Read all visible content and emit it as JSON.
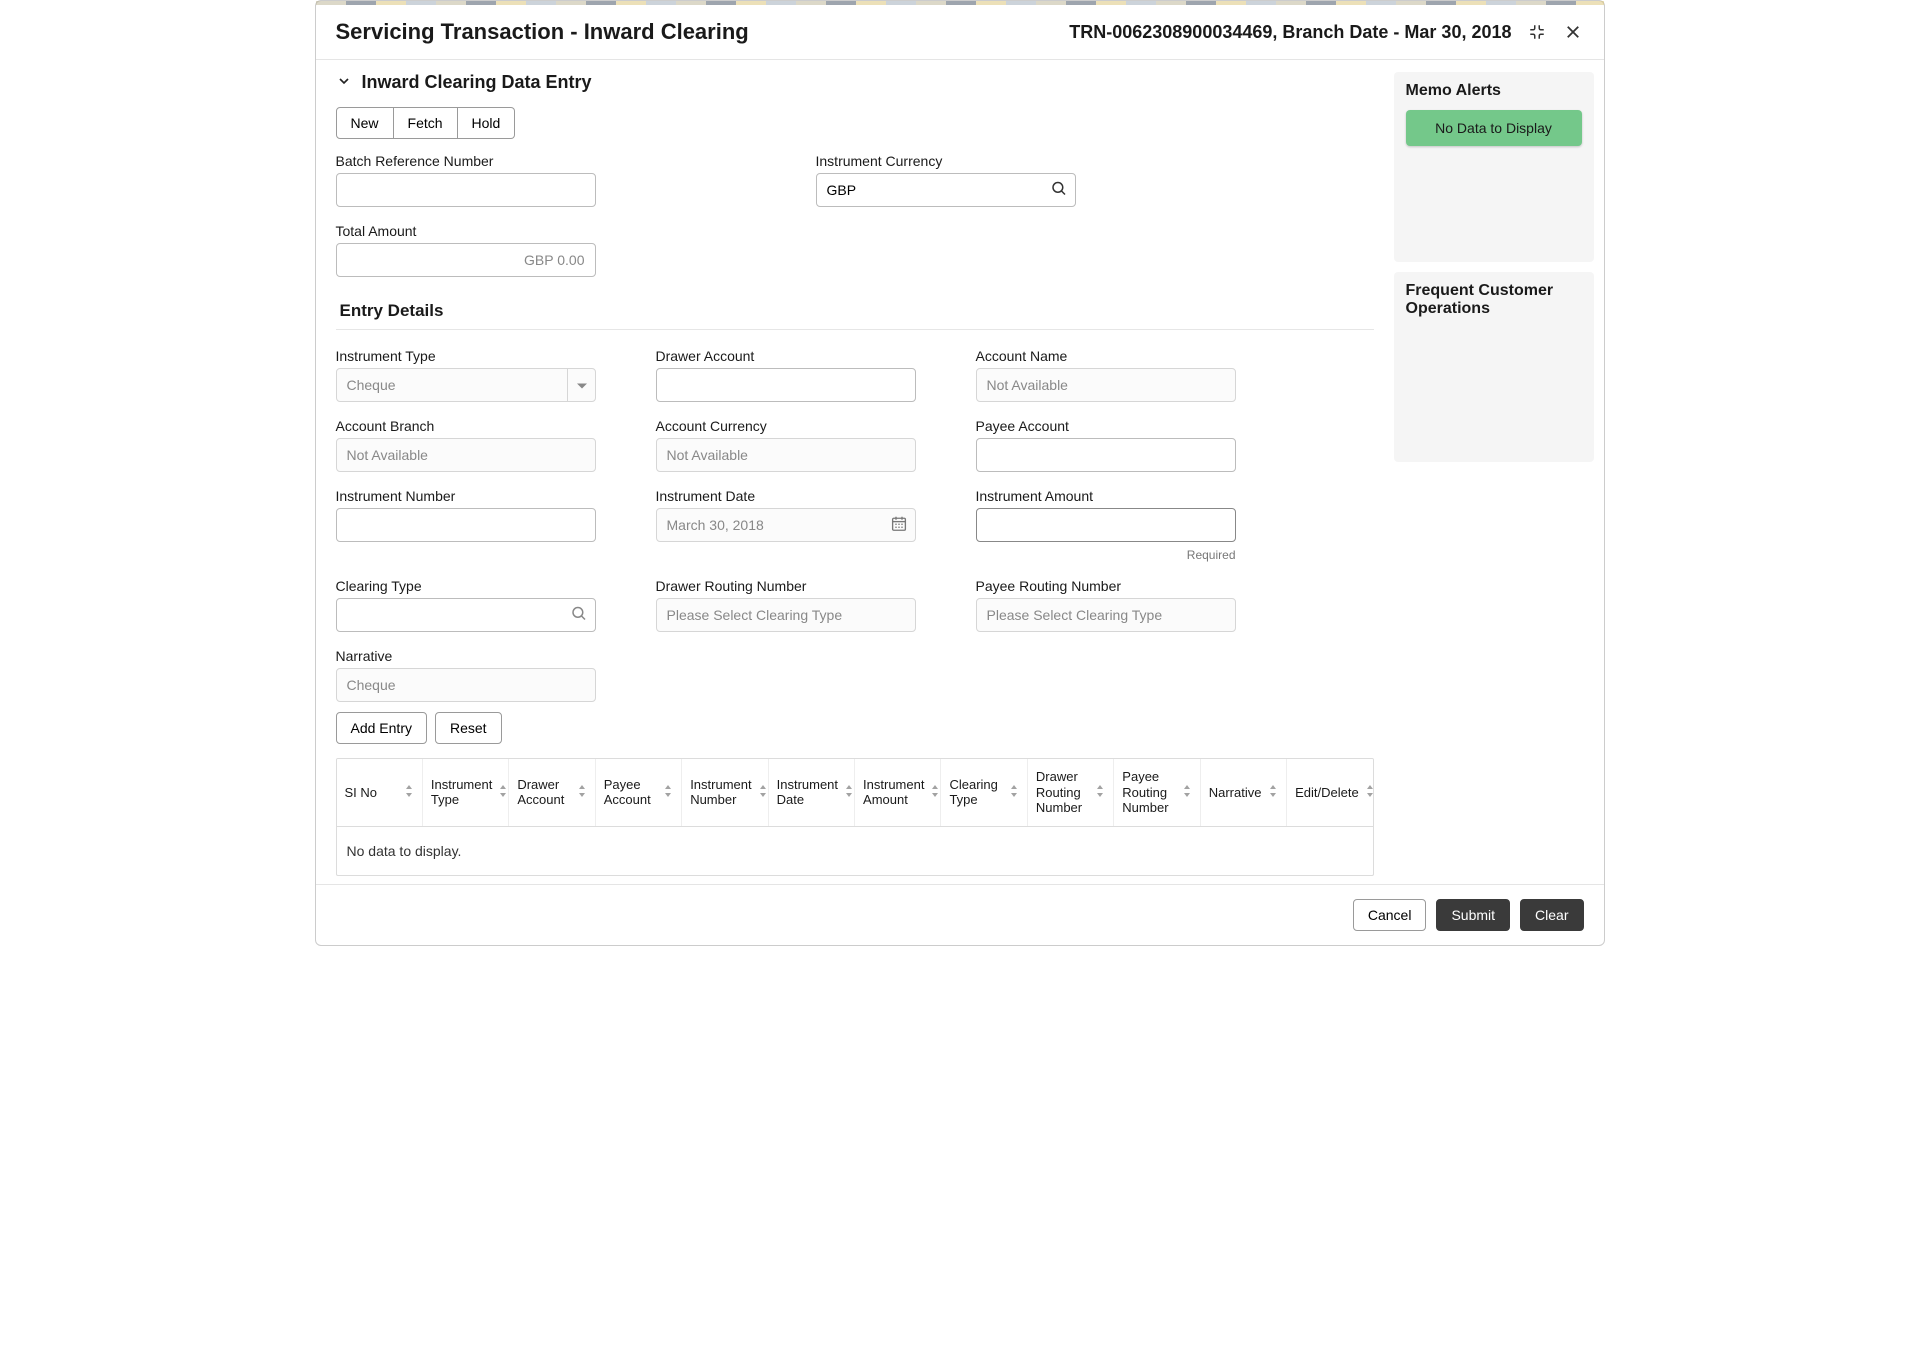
{
  "header": {
    "title": "Servicing Transaction - Inward Clearing",
    "info": "TRN-0062308900034469, Branch Date - Mar 30, 2018"
  },
  "section": {
    "title": "Inward Clearing Data Entry",
    "buttons": {
      "new": "New",
      "fetch": "Fetch",
      "hold": "Hold"
    }
  },
  "top_fields": {
    "batch_ref": {
      "label": "Batch Reference Number",
      "value": ""
    },
    "instrument_currency": {
      "label": "Instrument Currency",
      "value": "GBP"
    },
    "total_amount": {
      "label": "Total Amount",
      "placeholder": "GBP 0.00",
      "value": ""
    }
  },
  "entry_details": {
    "title": "Entry Details",
    "instrument_type": {
      "label": "Instrument Type",
      "placeholder": "Cheque"
    },
    "drawer_account": {
      "label": "Drawer Account",
      "value": ""
    },
    "account_name": {
      "label": "Account Name",
      "placeholder": "Not Available"
    },
    "account_branch": {
      "label": "Account Branch",
      "placeholder": "Not Available"
    },
    "account_currency": {
      "label": "Account Currency",
      "placeholder": "Not Available"
    },
    "payee_account": {
      "label": "Payee Account",
      "value": ""
    },
    "instrument_number": {
      "label": "Instrument Number",
      "value": ""
    },
    "instrument_date": {
      "label": "Instrument Date",
      "placeholder": "March 30, 2018"
    },
    "instrument_amount": {
      "label": "Instrument Amount",
      "value": "",
      "helper": "Required"
    },
    "clearing_type": {
      "label": "Clearing Type",
      "value": ""
    },
    "drawer_routing": {
      "label": "Drawer Routing Number",
      "placeholder": "Please Select Clearing Type"
    },
    "payee_routing": {
      "label": "Payee Routing Number",
      "placeholder": "Please Select Clearing Type"
    },
    "narrative": {
      "label": "Narrative",
      "placeholder": "Cheque"
    },
    "buttons": {
      "add_entry": "Add Entry",
      "reset": "Reset"
    }
  },
  "table": {
    "columns": [
      "SI No",
      "Instrument Type",
      "Drawer Account",
      "Payee Account",
      "Instrument Number",
      "Instrument Date",
      "Instrument Amount",
      "Clearing Type",
      "Drawer Routing Number",
      "Payee Routing Number",
      "Narrative",
      "Edit/Delete"
    ],
    "empty_text": "No data to display."
  },
  "sidebar": {
    "memo_title": "Memo Alerts",
    "memo_empty": "No Data to Display",
    "freq_title": "Frequent Customer Operations"
  },
  "footer": {
    "cancel": "Cancel",
    "submit": "Submit",
    "clear": "Clear"
  },
  "colors": {
    "success_bg": "#74c88a",
    "border": "#bcbcbc",
    "dark_btn": "#3a3a3a"
  }
}
